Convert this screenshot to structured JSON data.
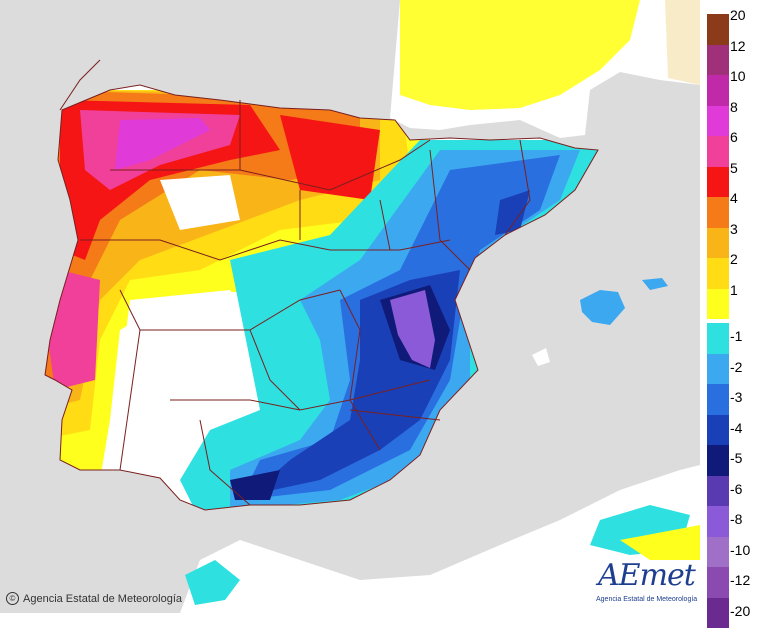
{
  "map": {
    "title": "",
    "credit": "Agencia Estatal de Meteorología",
    "copyright_symbol": "©",
    "logo_text": "AEmet",
    "logo_subtext": "Agencia Estatal de Meteorología",
    "colors": {
      "sea": "#dcdcdc",
      "land_neutral": "#ffffff",
      "border_lines": "#7a1f1f"
    }
  },
  "legend": {
    "positive": [
      {
        "label": "20",
        "color": "#8b3a1a"
      },
      {
        "label": "12",
        "color": "#a0307a"
      },
      {
        "label": "10",
        "color": "#c02aa8"
      },
      {
        "label": "8",
        "color": "#e03ad8"
      },
      {
        "label": "6",
        "color": "#f0409a"
      },
      {
        "label": "5",
        "color": "#f51515"
      },
      {
        "label": "4",
        "color": "#f57a18"
      },
      {
        "label": "3",
        "color": "#f9b418"
      },
      {
        "label": "2",
        "color": "#ffdc14"
      },
      {
        "label": "1",
        "color": "#ffff1e"
      }
    ],
    "negative": [
      {
        "label": "-1",
        "color": "#2ee0e0"
      },
      {
        "label": "-2",
        "color": "#3ca8f0"
      },
      {
        "label": "-3",
        "color": "#2a6fe0"
      },
      {
        "label": "-4",
        "color": "#1a40b8"
      },
      {
        "label": "-5",
        "color": "#101a78"
      },
      {
        "label": "-6",
        "color": "#5a3ab0"
      },
      {
        "label": "-8",
        "color": "#8a5ad8"
      },
      {
        "label": "-10",
        "color": "#a070c8"
      },
      {
        "label": "-12",
        "color": "#8a4ab0"
      },
      {
        "label": "-20",
        "color": "#6a2a90"
      }
    ]
  }
}
